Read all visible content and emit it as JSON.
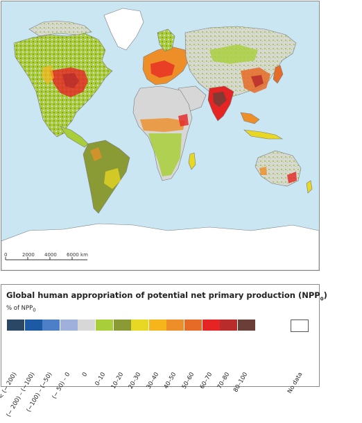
{
  "scale": {
    "ticks": [
      "0",
      "2000",
      "4000",
      "6000 km"
    ]
  },
  "legend": {
    "title_main": "Global human appropriation of potential net primary production (NPP",
    "title_sub": "0",
    "title_end": ")",
    "unit_main": "% of NPP",
    "unit_sub": "0",
    "classes": [
      {
        "label": "< (− 200)",
        "color": "#2b4766"
      },
      {
        "label": "(− 200) – (−100)",
        "color": "#1c5aa6"
      },
      {
        "label": "(−100) – (−50)",
        "color": "#4d7fc8"
      },
      {
        "label": "(− 50) – 0",
        "color": "#9fb0dc"
      },
      {
        "label": "0",
        "color": "#d7d7d7"
      },
      {
        "label": "0–10",
        "color": "#a8cf3a"
      },
      {
        "label": "10–20",
        "color": "#8a9a34"
      },
      {
        "label": "20–30",
        "color": "#e9d823"
      },
      {
        "label": "30–40",
        "color": "#f7b51c"
      },
      {
        "label": "40–50",
        "color": "#ee8e28"
      },
      {
        "label": "50–60",
        "color": "#e66b27"
      },
      {
        "label": "60–70",
        "color": "#e52424"
      },
      {
        "label": "70–80",
        "color": "#b82c2c"
      },
      {
        "label": "80–100",
        "color": "#6b3f37"
      }
    ],
    "nodata_label": "No data"
  }
}
